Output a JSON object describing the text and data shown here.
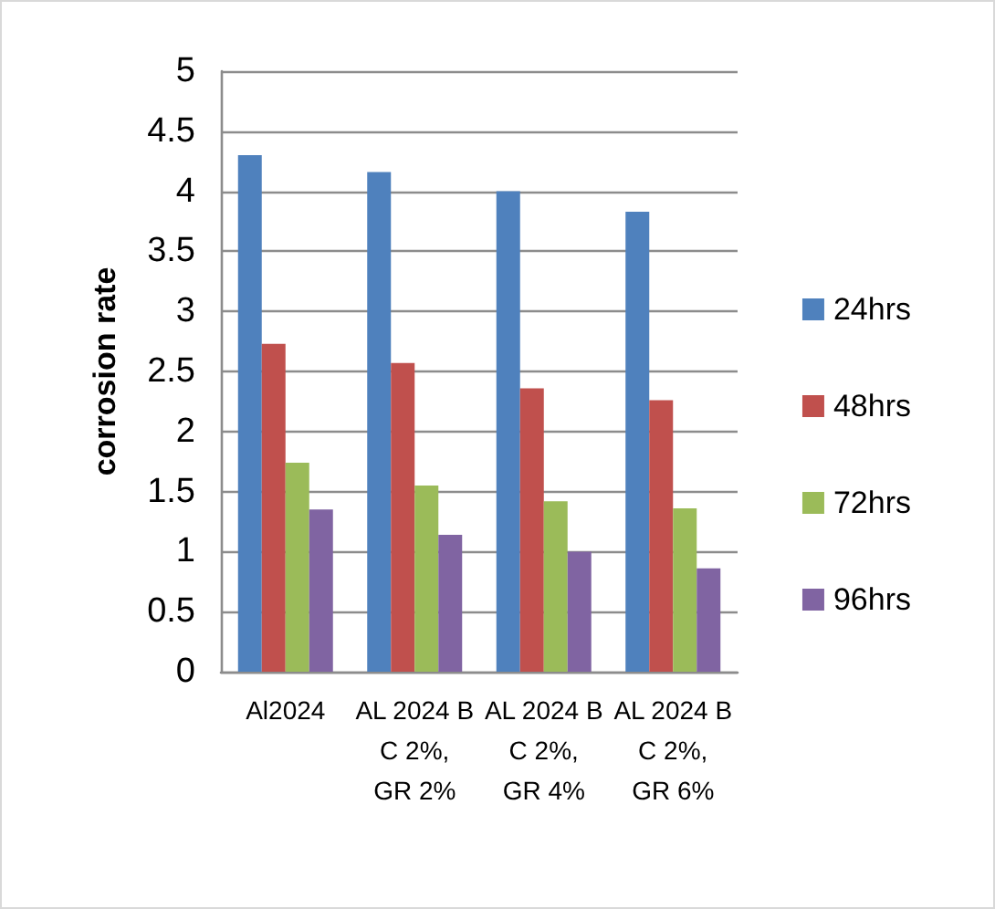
{
  "chart_data": {
    "type": "bar",
    "ylabel": "corrosion rate",
    "categories": [
      "Al2024",
      "AL 2024 B C 2%, GR 2%",
      "AL 2024 B C 2%, GR 4%",
      "AL 2024 B C 2%, GR 6%"
    ],
    "series": [
      {
        "name": "24hrs",
        "color": "#4f81bd",
        "values": [
          4.3,
          4.16,
          4.0,
          3.83
        ]
      },
      {
        "name": "48hrs",
        "color": "#c0504d",
        "values": [
          2.73,
          2.57,
          2.36,
          2.26
        ]
      },
      {
        "name": "72hrs",
        "color": "#9bbb59",
        "values": [
          1.74,
          1.55,
          1.42,
          1.36
        ]
      },
      {
        "name": "96hrs",
        "color": "#8064a2",
        "values": [
          1.35,
          1.14,
          1.0,
          0.86
        ]
      }
    ],
    "ylim": [
      0,
      5
    ],
    "yticks": [
      0,
      0.5,
      1,
      1.5,
      2,
      2.5,
      3,
      3.5,
      4,
      4.5,
      5
    ],
    "grid": "y",
    "legend": "right"
  }
}
